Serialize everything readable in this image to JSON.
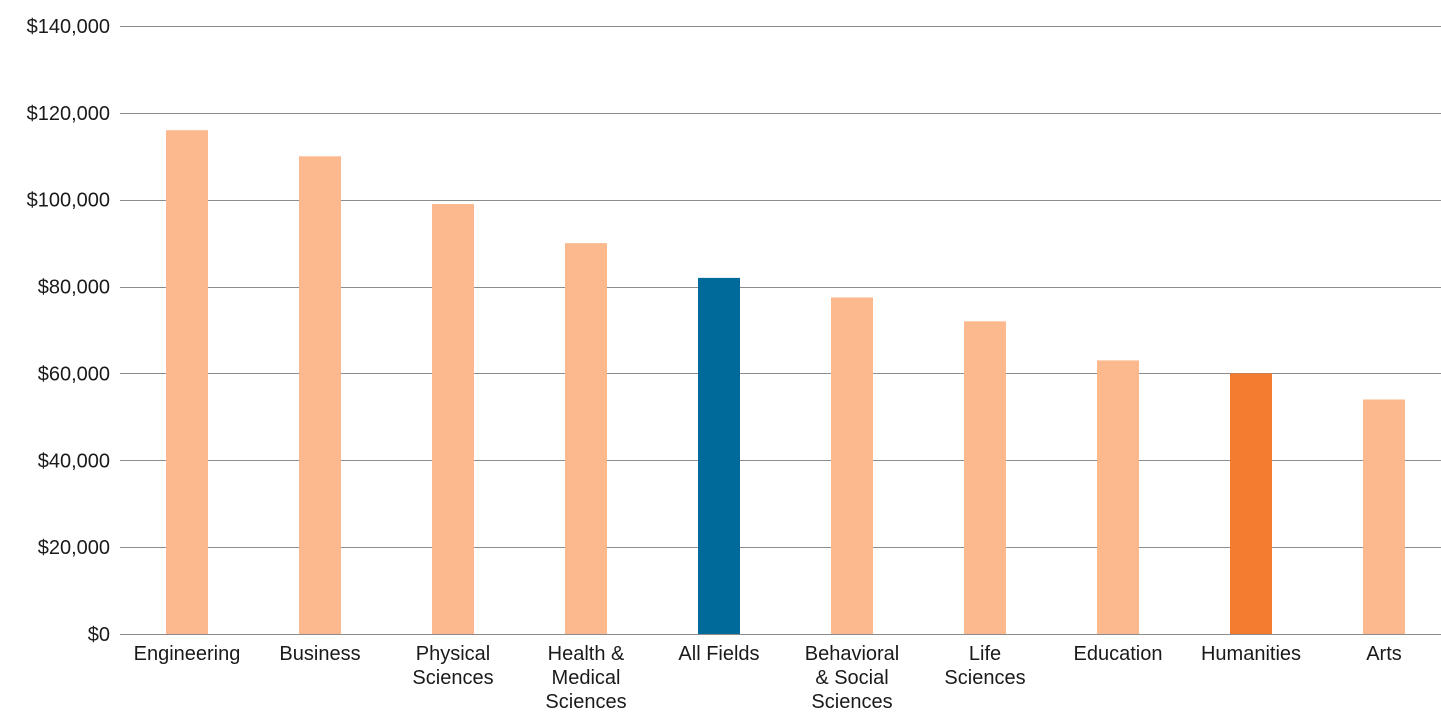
{
  "chart_data": {
    "type": "bar",
    "title": "",
    "xlabel": "",
    "ylabel": "",
    "categories": [
      [
        "Engineering"
      ],
      [
        "Business"
      ],
      [
        "Physical",
        "Sciences"
      ],
      [
        "Health &",
        "Medical",
        "Sciences"
      ],
      [
        "All Fields"
      ],
      [
        "Behavioral",
        "& Social",
        "Sciences"
      ],
      [
        "Life",
        "Sciences"
      ],
      [
        "Education"
      ],
      [
        "Humanities"
      ],
      [
        "Arts"
      ]
    ],
    "values": [
      116000,
      110000,
      99000,
      90000,
      82000,
      77500,
      72000,
      63000,
      60000,
      54000
    ],
    "ylim": [
      0,
      140000
    ],
    "yticks": [
      0,
      20000,
      40000,
      60000,
      80000,
      100000,
      120000,
      140000
    ],
    "ytick_labels": [
      "$0",
      "$20,000",
      "$40,000",
      "$60,000",
      "$80,000",
      "$100,000",
      "$120,000",
      "$140,000"
    ],
    "grid": true,
    "legend": "none",
    "colors": {
      "default": "#fbb98d",
      "highlight_all_fields": "#006a9b",
      "highlight_humanities": "#f47c30",
      "grid": "#8c8c8c"
    },
    "bar_colors": [
      "default",
      "default",
      "default",
      "default",
      "highlight_all_fields",
      "default",
      "default",
      "default",
      "highlight_humanities",
      "default"
    ]
  }
}
